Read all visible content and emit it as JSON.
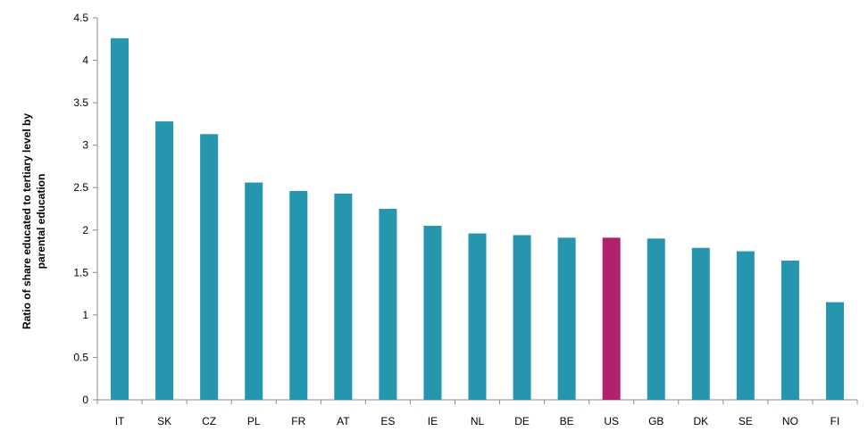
{
  "chart_data": {
    "type": "bar",
    "title": "",
    "xlabel": "",
    "ylabel_lines": [
      "Ratio of share educated to tertiary level by",
      "parental education"
    ],
    "categories": [
      "IT",
      "SK",
      "CZ",
      "PL",
      "FR",
      "AT",
      "ES",
      "IE",
      "NL",
      "DE",
      "BE",
      "US",
      "GB",
      "DK",
      "SE",
      "NO",
      "FI"
    ],
    "values": [
      4.26,
      3.28,
      3.13,
      2.56,
      2.46,
      2.43,
      2.25,
      2.05,
      1.96,
      1.94,
      1.91,
      1.91,
      1.9,
      1.79,
      1.75,
      1.64,
      1.15
    ],
    "ylim": [
      0,
      4.5
    ],
    "yticks": [
      "0",
      "0.5",
      "1",
      "1.5",
      "2",
      "2.5",
      "3",
      "3.5",
      "4",
      "4.5"
    ],
    "grid": false,
    "legend": "none",
    "colors": {
      "default_bar": "#2596ae",
      "highlight_bar": "#b0216b",
      "axis": "#8c8c8c"
    },
    "highlight_category": "US"
  }
}
